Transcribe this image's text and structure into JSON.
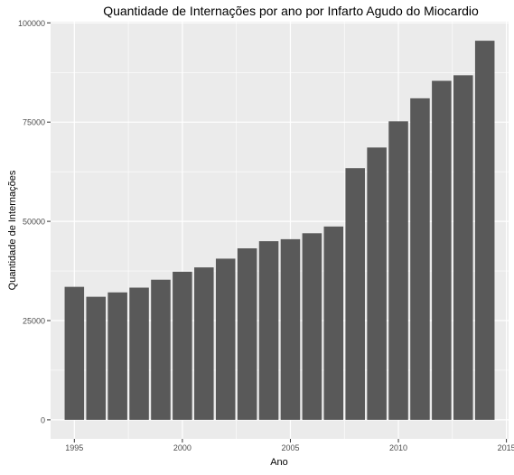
{
  "chart_data": {
    "type": "bar",
    "title": "Quantidade de Internações por ano por Infarto Agudo do Miocardio",
    "xlabel": "Ano",
    "ylabel": "Quantidade de Internações",
    "x": [
      1995,
      1996,
      1997,
      1998,
      1999,
      2000,
      2001,
      2002,
      2003,
      2004,
      2005,
      2006,
      2007,
      2008,
      2009,
      2010,
      2011,
      2012,
      2013,
      2014
    ],
    "values": [
      33500,
      31000,
      32100,
      33300,
      35300,
      37300,
      38400,
      40600,
      43200,
      45000,
      45500,
      47000,
      48700,
      63400,
      68600,
      75200,
      81000,
      85400,
      86800,
      95500
    ],
    "xlim": [
      1993.9,
      2015.1
    ],
    "ylim": [
      -4800,
      100300
    ],
    "x_ticks": [
      1995,
      2000,
      2005,
      2010,
      2015
    ],
    "y_ticks": [
      0,
      25000,
      50000,
      75000,
      100000
    ],
    "x_tick_labels": [
      "1995",
      "2000",
      "2005",
      "2010",
      "2015"
    ],
    "y_tick_labels": [
      "0",
      "25000",
      "50000",
      "75000",
      "100000"
    ],
    "grid": true,
    "legend": "none",
    "colors": {
      "bar": "#595959",
      "panel": "#ebebeb",
      "grid": "#ffffff",
      "text": "#000000",
      "tick_text": "#4d4d4d"
    }
  }
}
